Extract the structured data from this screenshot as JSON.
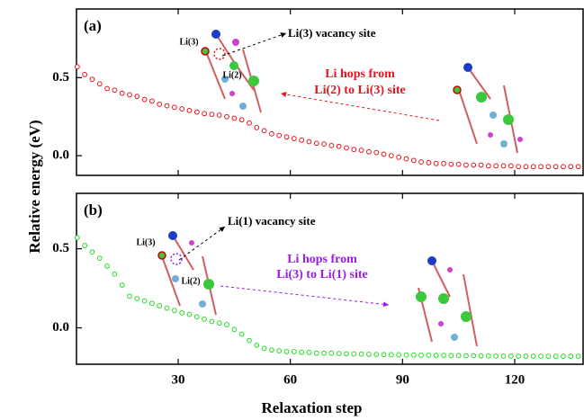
{
  "chart_data": [
    {
      "type": "line",
      "panel_label": "(a)",
      "x": [
        3,
        5,
        7,
        9,
        11,
        13,
        15,
        17,
        19,
        21,
        23,
        25,
        27,
        29,
        31,
        33,
        35,
        37,
        39,
        41,
        43,
        45,
        47,
        49,
        51,
        53,
        55,
        57,
        59,
        61,
        63,
        65,
        67,
        69,
        71,
        73,
        75,
        77,
        79,
        81,
        83,
        85,
        87,
        89,
        91,
        93,
        95,
        97,
        99,
        101,
        103,
        105,
        107,
        109,
        111,
        113,
        115,
        117,
        119,
        121,
        123,
        125,
        127,
        129,
        131,
        133,
        135,
        137
      ],
      "series": [
        {
          "color": "#e8141c",
          "values": [
            0.57,
            0.52,
            0.49,
            0.46,
            0.43,
            0.42,
            0.4,
            0.39,
            0.38,
            0.36,
            0.35,
            0.33,
            0.32,
            0.31,
            0.3,
            0.29,
            0.28,
            0.27,
            0.265,
            0.26,
            0.25,
            0.24,
            0.23,
            0.21,
            0.18,
            0.16,
            0.14,
            0.13,
            0.12,
            0.11,
            0.1,
            0.09,
            0.08,
            0.075,
            0.065,
            0.06,
            0.05,
            0.04,
            0.035,
            0.025,
            0.02,
            0.01,
            0.0,
            -0.01,
            -0.02,
            -0.03,
            -0.04,
            -0.045,
            -0.05,
            -0.05,
            -0.055,
            -0.055,
            -0.06,
            -0.06,
            -0.06,
            -0.065,
            -0.065,
            -0.065,
            -0.065,
            -0.07,
            -0.07,
            -0.07,
            -0.07,
            -0.07,
            -0.07,
            -0.07,
            -0.07,
            -0.07
          ]
        }
      ],
      "xlim": [
        2.8,
        138.3
      ],
      "xticks": [
        30,
        60,
        90,
        120
      ],
      "ylim": [
        -0.126,
        0.94
      ],
      "yticks": [
        {
          "value": 0,
          "label": "0.0"
        },
        0.5
      ],
      "ylabel": "Relative energy (eV)",
      "annotations": [
        {
          "text": "Li(3) vacancy site",
          "color": "#000000"
        },
        {
          "text": "Li hops from",
          "color": "#e8141c"
        },
        {
          "text": "Li(2) to Li(3) site",
          "color": "#e8141c"
        },
        {
          "text": "Li(3)",
          "color": "#000000"
        },
        {
          "text": "Li(2)",
          "color": "#000000"
        }
      ]
    },
    {
      "type": "line",
      "panel_label": "(b)",
      "x": [
        3,
        5,
        7,
        9,
        11,
        13,
        15,
        17,
        19,
        21,
        23,
        25,
        27,
        29,
        31,
        33,
        35,
        37,
        39,
        41,
        43,
        45,
        47,
        49,
        51,
        53,
        55,
        57,
        59,
        61,
        63,
        65,
        67,
        69,
        71,
        73,
        75,
        77,
        79,
        81,
        83,
        85,
        87,
        89,
        91,
        93,
        95,
        97,
        99,
        101,
        103,
        105,
        107,
        109,
        111,
        113,
        115,
        117,
        119,
        121,
        123,
        125,
        127,
        129,
        131,
        133,
        135,
        137
      ],
      "series": [
        {
          "color": "#22dd22",
          "values": [
            0.57,
            0.52,
            0.48,
            0.44,
            0.39,
            0.34,
            0.27,
            0.2,
            0.185,
            0.17,
            0.155,
            0.14,
            0.125,
            0.11,
            0.095,
            0.085,
            0.07,
            0.055,
            0.04,
            0.03,
            0.02,
            -0.01,
            -0.04,
            -0.08,
            -0.11,
            -0.13,
            -0.14,
            -0.145,
            -0.15,
            -0.15,
            -0.155,
            -0.155,
            -0.16,
            -0.16,
            -0.16,
            -0.162,
            -0.164,
            -0.165,
            -0.166,
            -0.167,
            -0.168,
            -0.169,
            -0.17,
            -0.17,
            -0.171,
            -0.172,
            -0.173,
            -0.173,
            -0.174,
            -0.174,
            -0.175,
            -0.175,
            -0.176,
            -0.176,
            -0.177,
            -0.177,
            -0.178,
            -0.178,
            -0.178,
            -0.179,
            -0.179,
            -0.179,
            -0.18,
            -0.18,
            -0.18,
            -0.18,
            -0.18,
            -0.18
          ]
        }
      ],
      "xlim": [
        2.8,
        138.3
      ],
      "xticks": [
        30,
        60,
        90,
        120
      ],
      "ylim": [
        -0.23,
        0.85
      ],
      "yticks": [
        {
          "value": 0,
          "label": "0.0"
        },
        0.5
      ],
      "xlabel": "Relaxation step",
      "annotations": [
        {
          "text": "Li(1) vacancy site",
          "color": "#000000"
        },
        {
          "text": "Li hops from",
          "color": "#9a1ce8"
        },
        {
          "text": "Li(3) to Li(1) site",
          "color": "#9a1ce8"
        },
        {
          "text": "Li(3)",
          "color": "#000000"
        },
        {
          "text": "Li(2)",
          "color": "#000000"
        }
      ]
    }
  ]
}
